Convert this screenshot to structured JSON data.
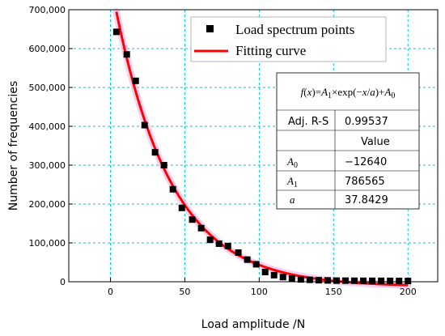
{
  "chart_data": {
    "type": "scatter",
    "xlabel": "Load amplitude /N",
    "ylabel": "Number of frequencies",
    "xlim": [
      -28,
      220
    ],
    "ylim": [
      0,
      700000
    ],
    "x_ticks": [
      0,
      50,
      100,
      150,
      200
    ],
    "x_tick_labels": [
      "0",
      "50",
      "100",
      "150",
      "200"
    ],
    "y_ticks": [
      0,
      100000,
      200000,
      300000,
      400000,
      500000,
      600000,
      700000
    ],
    "y_tick_labels": [
      "0",
      "100,000",
      "200,000",
      "300,000",
      "400,000",
      "500,000",
      "600,000",
      "700,000"
    ],
    "grid": true,
    "legend_position": "top-right",
    "colors": {
      "points": "#000000",
      "fit": "#ff0000",
      "grid": "#00c8e0"
    },
    "series": [
      {
        "name": "Load spectrum points",
        "kind": "scatter",
        "x": [
          4,
          11,
          17,
          23,
          30,
          36,
          42,
          48,
          55,
          61,
          67,
          73,
          79,
          86,
          92,
          98,
          104,
          110,
          116,
          122,
          128,
          134,
          140,
          146,
          152,
          158,
          164,
          170,
          176,
          182,
          188,
          194,
          200
        ],
        "y": [
          643000,
          585000,
          517000,
          403000,
          333000,
          300000,
          238000,
          190000,
          160000,
          138000,
          108000,
          98000,
          92000,
          75000,
          57000,
          45000,
          25000,
          17000,
          12000,
          8000,
          6000,
          5000,
          4000,
          3500,
          3000,
          2800,
          2600,
          2500,
          2500,
          2400,
          2300,
          2200,
          2100
        ]
      },
      {
        "name": "Fitting curve",
        "kind": "line",
        "model": "exponential",
        "A0": -12640,
        "A1": 786565,
        "a": 37.8429,
        "x_range": [
          4,
          200
        ]
      }
    ],
    "fit_table": {
      "equation_parts": [
        "f",
        "(",
        "x",
        ")=",
        "A",
        "1",
        "×exp(−",
        "x",
        "/",
        "a",
        ")+",
        "A",
        "0"
      ],
      "adj_label": "Adj. R-S",
      "adj_value": "0.99537",
      "value_header": "Value",
      "rows": [
        {
          "param": "A",
          "sub": "0",
          "value": "−12640"
        },
        {
          "param": "A",
          "sub": "1",
          "value": "786565"
        },
        {
          "param": "a",
          "sub": "",
          "value": "37.8429"
        }
      ]
    }
  }
}
